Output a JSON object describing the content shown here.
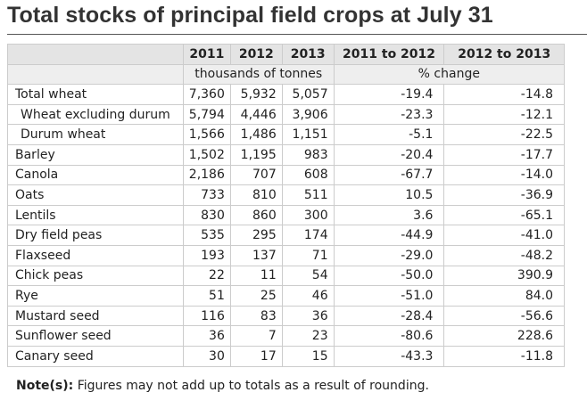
{
  "title": "Total stocks of principal field crops at July 31",
  "table": {
    "header": [
      "2011",
      "2012",
      "2013",
      "2011 to 2012",
      "2012 to 2013"
    ],
    "units_left": "thousands of tonnes",
    "units_right": "% change",
    "rows": [
      {
        "label": "Total wheat",
        "indent": false,
        "v2011": "7,360",
        "v2012": "5,932",
        "v2013": "5,057",
        "chg1": "-19.4",
        "chg2": "-14.8"
      },
      {
        "label": "Wheat excluding durum",
        "indent": true,
        "v2011": "5,794",
        "v2012": "4,446",
        "v2013": "3,906",
        "chg1": "-23.3",
        "chg2": "-12.1"
      },
      {
        "label": "Durum wheat",
        "indent": true,
        "v2011": "1,566",
        "v2012": "1,486",
        "v2013": "1,151",
        "chg1": "-5.1",
        "chg2": "-22.5"
      },
      {
        "label": "Barley",
        "indent": false,
        "v2011": "1,502",
        "v2012": "1,195",
        "v2013": "983",
        "chg1": "-20.4",
        "chg2": "-17.7"
      },
      {
        "label": "Canola",
        "indent": false,
        "v2011": "2,186",
        "v2012": "707",
        "v2013": "608",
        "chg1": "-67.7",
        "chg2": "-14.0"
      },
      {
        "label": "Oats",
        "indent": false,
        "v2011": "733",
        "v2012": "810",
        "v2013": "511",
        "chg1": "10.5",
        "chg2": "-36.9"
      },
      {
        "label": "Lentils",
        "indent": false,
        "v2011": "830",
        "v2012": "860",
        "v2013": "300",
        "chg1": "3.6",
        "chg2": "-65.1"
      },
      {
        "label": "Dry field peas",
        "indent": false,
        "v2011": "535",
        "v2012": "295",
        "v2013": "174",
        "chg1": "-44.9",
        "chg2": "-41.0"
      },
      {
        "label": "Flaxseed",
        "indent": false,
        "v2011": "193",
        "v2012": "137",
        "v2013": "71",
        "chg1": "-29.0",
        "chg2": "-48.2"
      },
      {
        "label": "Chick peas",
        "indent": false,
        "v2011": "22",
        "v2012": "11",
        "v2013": "54",
        "chg1": "-50.0",
        "chg2": "390.9"
      },
      {
        "label": "Rye",
        "indent": false,
        "v2011": "51",
        "v2012": "25",
        "v2013": "46",
        "chg1": "-51.0",
        "chg2": "84.0"
      },
      {
        "label": "Mustard seed",
        "indent": false,
        "v2011": "116",
        "v2012": "83",
        "v2013": "36",
        "chg1": "-28.4",
        "chg2": "-56.6"
      },
      {
        "label": "Sunflower seed",
        "indent": false,
        "v2011": "36",
        "v2012": "7",
        "v2013": "23",
        "chg1": "-80.6",
        "chg2": "228.6"
      },
      {
        "label": "Canary seed",
        "indent": false,
        "v2011": "30",
        "v2012": "17",
        "v2013": "15",
        "chg1": "-43.3",
        "chg2": "-11.8"
      }
    ]
  },
  "note": {
    "label": "Note(s):",
    "text": "Figures may not add up to totals as a result of rounding."
  }
}
